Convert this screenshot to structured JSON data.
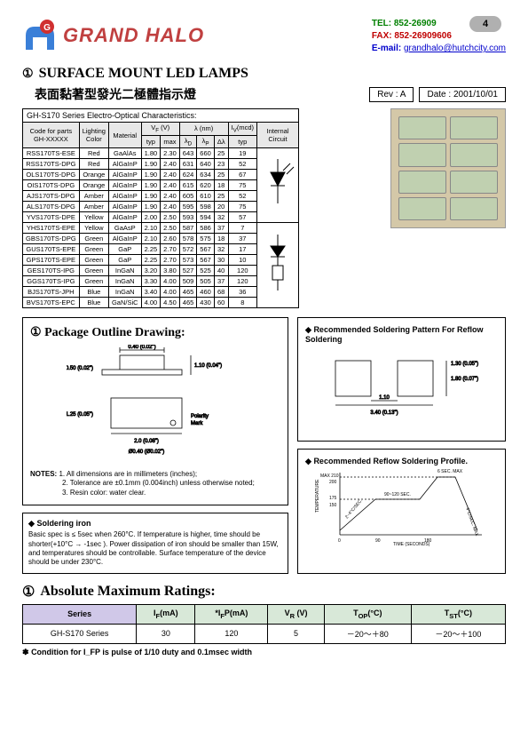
{
  "page_number": "4",
  "company": {
    "name": "GRAND HALO",
    "name_color": "#c04040",
    "logo_colors": {
      "body": "#3a7fd8",
      "ball": "#d03030"
    },
    "tel_label": "TEL:",
    "tel": "852-26909",
    "fax_label": "FAX:",
    "fax": "852-26909606",
    "email_label": "E-mail:",
    "email": "grandhalo@hutchcity.com"
  },
  "title": {
    "circled_mark": "①",
    "text": "SURFACE MOUNT LED LAMPS",
    "chinese": "表面黏著型發光二極體指示燈",
    "rev_label": "Rev : A",
    "date_label": "Date : 2001/10/01"
  },
  "spec_table": {
    "caption": "GH-S170 Series Electro-Optical Characteristics:",
    "headers_row1": [
      "Code for parts GH-XXXXX",
      "Lighting Color",
      "Material",
      "V_F (V)",
      "V_F (V)",
      "λ (nm)",
      "λ (nm)",
      "λ (nm)",
      "I_V(mcd)",
      "Internal Circuit"
    ],
    "headers_row2": [
      "",
      "",
      "",
      "typ",
      "max",
      "λ_D",
      "λ_P",
      "Δλ",
      "typ",
      ""
    ],
    "rows": [
      [
        "RSS170TS-ESE",
        "Red",
        "GaAlAs",
        "1.80",
        "2.30",
        "643",
        "660",
        "25",
        "19"
      ],
      [
        "RSS170TS-DPG",
        "Red",
        "AlGaInP",
        "1.90",
        "2.40",
        "631",
        "640",
        "23",
        "52"
      ],
      [
        "OLS170TS-DPG",
        "Orange",
        "AlGaInP",
        "1.90",
        "2.40",
        "624",
        "634",
        "25",
        "67"
      ],
      [
        "OIS170TS-DPG",
        "Orange",
        "AlGaInP",
        "1.90",
        "2.40",
        "615",
        "620",
        "18",
        "75"
      ],
      [
        "AJS170TS-DPG",
        "Amber",
        "AlGaInP",
        "1.90",
        "2.40",
        "605",
        "610",
        "25",
        "52"
      ],
      [
        "ALS170TS-DPG",
        "Amber",
        "AlGaInP",
        "1.90",
        "2.40",
        "595",
        "598",
        "20",
        "75"
      ],
      [
        "YVS170TS-DPE",
        "Yellow",
        "AlGaInP",
        "2.00",
        "2.50",
        "593",
        "594",
        "32",
        "57"
      ],
      [
        "YHS170TS-EPE",
        "Yellow",
        "GaAsP",
        "2.10",
        "2.50",
        "587",
        "586",
        "37",
        "7"
      ],
      [
        "GBS170TS-DPG",
        "Green",
        "AlGaInP",
        "2.10",
        "2.60",
        "578",
        "575",
        "18",
        "37"
      ],
      [
        "GUS170TS-EPE",
        "Green",
        "GaP",
        "2.25",
        "2.70",
        "572",
        "567",
        "32",
        "17"
      ],
      [
        "GPS170TS-EPE",
        "Green",
        "GaP",
        "2.25",
        "2.70",
        "573",
        "567",
        "30",
        "10"
      ],
      [
        "GES170TS-IPG",
        "Green",
        "InGaN",
        "3.20",
        "3.80",
        "527",
        "525",
        "40",
        "120"
      ],
      [
        "GGS170TS-IPG",
        "Green",
        "InGaN",
        "3.30",
        "4.00",
        "509",
        "505",
        "37",
        "120"
      ],
      [
        "BJS170TS-JPH",
        "Blue",
        "InGaN",
        "3.40",
        "4.00",
        "465",
        "460",
        "68",
        "36"
      ],
      [
        "BVS170TS-EPC",
        "Blue",
        "GaN/SiC",
        "4.00",
        "4.50",
        "465",
        "430",
        "60",
        "8"
      ]
    ]
  },
  "package_drawing": {
    "mark": "①",
    "title": "Package Outline Drawing:",
    "dims": [
      "0.40 (0.02\")",
      "0.50 (0.02\")",
      "1.10 (0.04\")",
      "2.0 (0.08\")",
      "1.25 (0.05\")",
      "Ø0.40 (Ø0.02\")",
      "Polarity Mark"
    ],
    "notes_label": "NOTES:",
    "notes": [
      "1. All dimensions are in millimeters (inches);",
      "2. Tolerance are ±0.1mm (0.004inch) unless otherwise noted;",
      "3. Resin color: water clear."
    ]
  },
  "reflow_pattern": {
    "bullet": "◆",
    "title": "Recommended Soldering Pattern For Reflow Soldering",
    "dims": [
      "1.10",
      "3.40 (0.13\")",
      "1.80 (0.07\")",
      "1.30 (0.05\")"
    ]
  },
  "reflow_profile": {
    "bullet": "◆",
    "title": "Recommended Reflow Soldering Profile.",
    "labels": [
      "MAX 210",
      "200",
      "175",
      "150",
      "90~120 SEC.",
      "6 SEC. MAX",
      "2~4°C/SEC.",
      "4°C/SEC. MAX",
      "TIME (SECONDS)",
      "TEMPERATURE",
      "90",
      "180",
      "0"
    ]
  },
  "soldering_iron": {
    "bullet": "◆",
    "title": "Soldering iron",
    "text": "Basic spec is ≤ 5sec when 260°C. If temperature is higher, time should be shorter(+10°C → -1sec ). Power dissipation of iron should be smaller than 15W, and temperatures should be controllable. Surface temperature of the device should be under 230°C."
  },
  "abs_max": {
    "mark": "①",
    "title": "Absolute Maximum Ratings:",
    "headers": [
      "Series",
      "I_F(mA)",
      "*I_FP(mA)",
      "V_R (V)",
      "T_OP(°C)",
      "T_ST(°C)"
    ],
    "row": [
      "GH-S170 Series",
      "30",
      "120",
      "5",
      "－20～＋80",
      "－20～＋100"
    ],
    "footnote_bullet": "✽",
    "footnote": "Condition for I_FP is pulse of 1/10 duty and 0.1msec width"
  }
}
